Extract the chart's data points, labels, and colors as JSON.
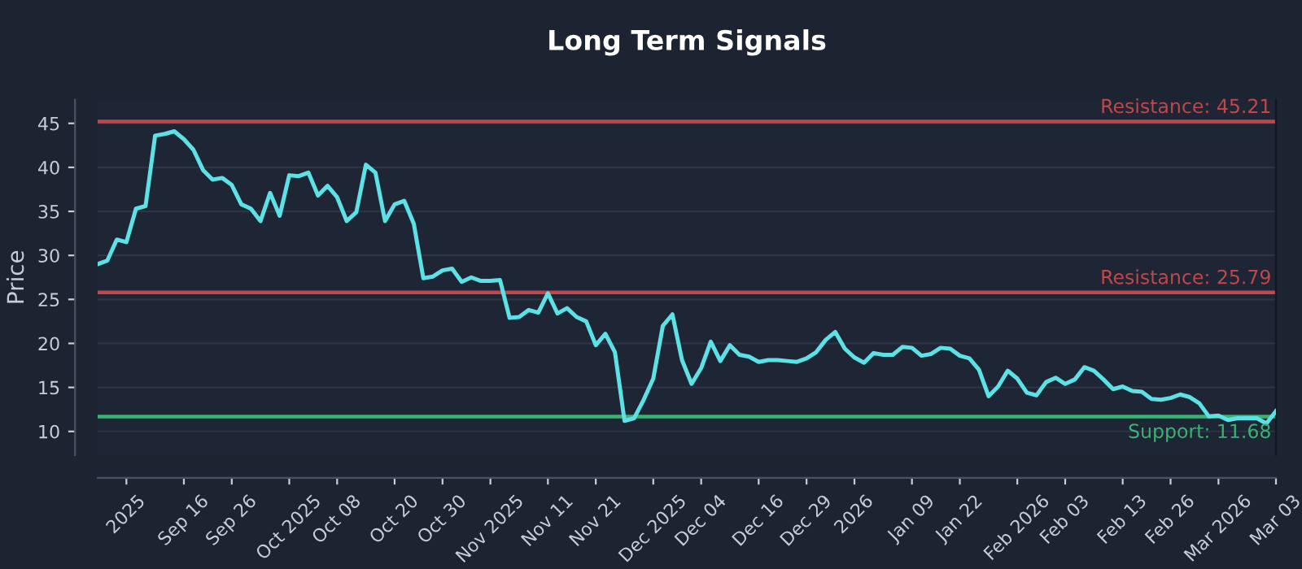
{
  "chart_data": {
    "type": "line",
    "title": "Long Term Signals",
    "ylabel": "Price",
    "categories": [
      null,
      null,
      null,
      "2025",
      null,
      null,
      null,
      null,
      null,
      "Sep 16",
      null,
      null,
      null,
      null,
      "Sep 26",
      null,
      null,
      null,
      null,
      null,
      "Oct 2025",
      null,
      null,
      null,
      null,
      "Oct 08",
      null,
      null,
      null,
      null,
      null,
      "Oct 20",
      null,
      null,
      null,
      null,
      "Oct 30",
      null,
      null,
      null,
      null,
      "Nov 2025",
      null,
      null,
      null,
      null,
      null,
      "Nov 11",
      null,
      null,
      null,
      null,
      "Nov 21",
      null,
      null,
      null,
      null,
      null,
      "Dec 2025",
      null,
      null,
      null,
      null,
      "Dec 04",
      null,
      null,
      null,
      null,
      null,
      "Dec 16",
      null,
      null,
      null,
      null,
      "Dec 29",
      null,
      null,
      null,
      null,
      "2026",
      null,
      null,
      null,
      null,
      null,
      "Jan 09",
      null,
      null,
      null,
      null,
      "Jan 22",
      null,
      null,
      null,
      null,
      null,
      "Feb 2026",
      null,
      null,
      null,
      null,
      "Feb 03",
      null,
      null,
      null,
      null,
      null,
      "Feb 13",
      null,
      null,
      null,
      null,
      "Feb 26",
      null,
      null,
      null,
      null,
      "Mar 2026",
      null,
      null,
      null,
      null,
      null,
      "Mar 03"
    ],
    "series": [
      {
        "color": "#5ce1e6",
        "values": [
          29.0,
          29.4,
          31.8,
          31.5,
          35.3,
          35.6,
          43.6,
          43.8,
          44.1,
          43.2,
          42.0,
          39.7,
          38.6,
          38.8,
          38.0,
          35.8,
          35.3,
          33.9,
          37.1,
          34.5,
          39.1,
          39.0,
          39.4,
          36.8,
          37.9,
          36.6,
          33.9,
          34.9,
          40.3,
          39.4,
          33.9,
          35.8,
          36.2,
          33.6,
          27.4,
          27.6,
          28.3,
          28.5,
          27.0,
          27.5,
          27.1,
          27.1,
          27.2,
          22.9,
          23.0,
          23.8,
          23.5,
          25.7,
          23.4,
          24.0,
          23.0,
          22.5,
          19.8,
          21.1,
          19.0,
          11.2,
          11.5,
          13.6,
          16.0,
          22.0,
          23.3,
          18.1,
          15.4,
          17.2,
          20.2,
          18.0,
          19.8,
          18.7,
          18.5,
          17.9,
          18.1,
          18.1,
          18.0,
          17.9,
          18.3,
          19.0,
          20.4,
          21.3,
          19.4,
          18.4,
          17.8,
          18.9,
          18.7,
          18.7,
          19.6,
          19.5,
          18.6,
          18.8,
          19.5,
          19.4,
          18.6,
          18.3,
          17.0,
          14.0,
          15.1,
          16.9,
          16.0,
          14.4,
          14.1,
          15.6,
          16.1,
          15.4,
          15.9,
          17.3,
          16.9,
          15.9,
          14.8,
          15.1,
          14.6,
          14.5,
          13.7,
          13.6,
          13.8,
          14.2,
          13.9,
          13.2,
          11.7,
          11.8,
          11.3,
          11.5,
          11.5,
          11.5,
          10.9,
          12.3
        ]
      }
    ],
    "ylim": [
      7.3,
      47.7
    ],
    "yticks": [
      10,
      15,
      20,
      25,
      30,
      35,
      40,
      45
    ],
    "grid": "y",
    "marker": "none",
    "line_style": "solid",
    "ref_lines": [
      {
        "axis": "y",
        "value": 45.21,
        "label": "Resistance: 45.21",
        "color": "#c0474a"
      },
      {
        "axis": "y",
        "value": 25.79,
        "label": "Resistance: 25.79",
        "color": "#c0474a"
      },
      {
        "axis": "y",
        "value": 11.68,
        "label": "Support: 11.68",
        "color": "#3bb273"
      }
    ]
  }
}
